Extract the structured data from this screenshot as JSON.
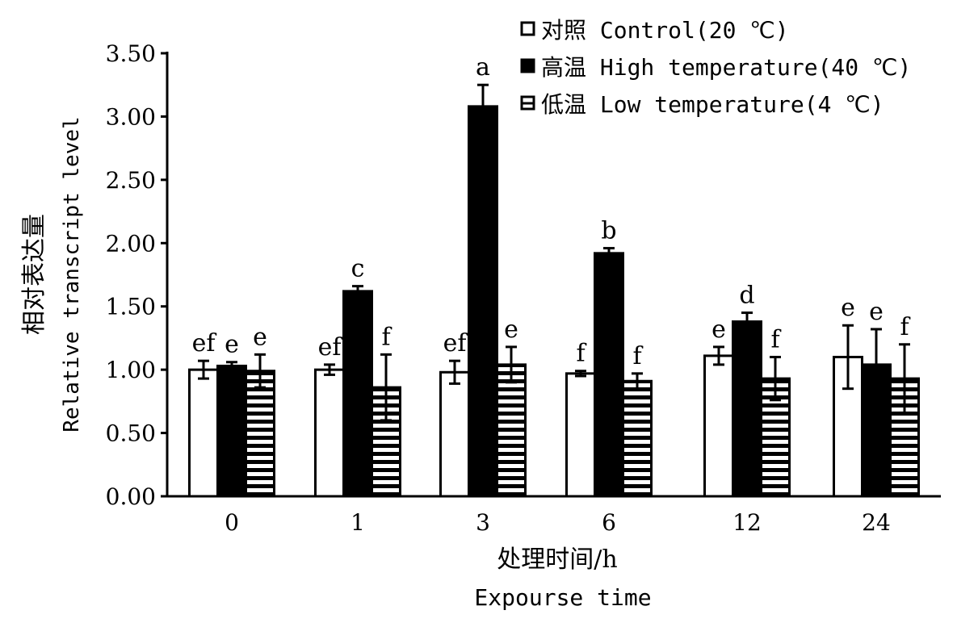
{
  "chart_data": {
    "type": "bar",
    "title": "",
    "xlabel": "处理时间/h",
    "xlabel_en": "Expourse time",
    "ylabel": "相对表达量",
    "ylabel_en": "Relative transcript level",
    "ylim": [
      0,
      3.5
    ],
    "yticks": [
      "0.00",
      "0.50",
      "1.00",
      "1.50",
      "2.00",
      "2.50",
      "3.00",
      "3.50"
    ],
    "categories": [
      "0",
      "1",
      "3",
      "6",
      "12",
      "24"
    ],
    "legend_position": "top-right",
    "series": [
      {
        "name": "对照 Control(20 ℃)",
        "pattern": "white",
        "values": [
          1.0,
          1.0,
          0.98,
          0.97,
          1.11,
          1.1
        ],
        "errors": [
          0.07,
          0.04,
          0.09,
          0.02,
          0.07,
          0.25
        ],
        "letters": [
          "ef",
          "ef",
          "ef",
          "f",
          "e",
          "e"
        ]
      },
      {
        "name": "高温 High temperature(40 ℃)",
        "pattern": "black",
        "values": [
          1.03,
          1.62,
          3.08,
          1.92,
          1.38,
          1.04
        ],
        "errors": [
          0.03,
          0.04,
          0.17,
          0.04,
          0.07,
          0.28
        ],
        "letters": [
          "e",
          "c",
          "a",
          "b",
          "d",
          "e"
        ]
      },
      {
        "name": "低温 Low temperature(4 ℃)",
        "pattern": "stripes",
        "values": [
          0.99,
          0.86,
          1.04,
          0.91,
          0.93,
          0.93
        ],
        "errors": [
          0.13,
          0.26,
          0.14,
          0.06,
          0.17,
          0.27
        ],
        "letters": [
          "e",
          "f",
          "e",
          "f",
          "f",
          "f"
        ]
      }
    ]
  }
}
